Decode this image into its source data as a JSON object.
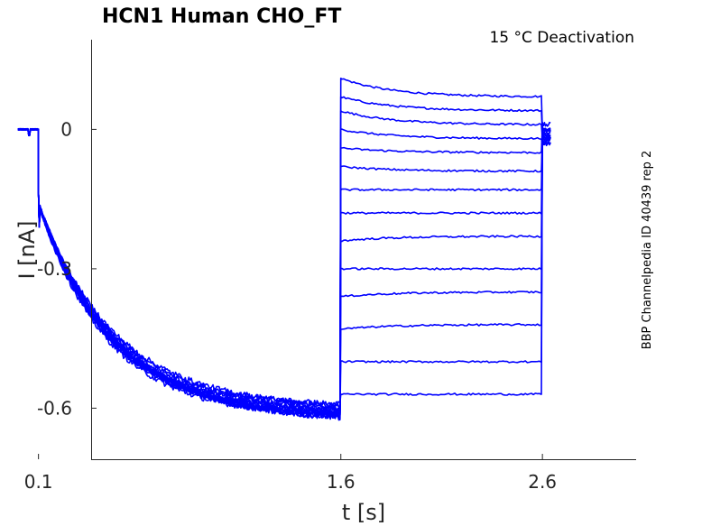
{
  "chart_data": {
    "type": "line",
    "title": "HCN1  Human  CHO_FT",
    "subtitle": "15 °C  Deactivation",
    "xlabel": "t [s]",
    "ylabel": "I [nA]",
    "side_label": "BBP Channelpedia ID 40439 rep 2",
    "xlim": [
      -0.0,
      2.64
    ],
    "ylim": [
      -0.72,
      0.19
    ],
    "xticks": [
      0.1,
      1.6,
      2.6
    ],
    "xtick_labels": [
      "0.1",
      "1.6",
      "2.6"
    ],
    "yticks": [
      0,
      -0.3,
      -0.6
    ],
    "ytick_labels": [
      "0",
      "-0.3",
      "-0.6"
    ],
    "grid": false,
    "color": "#0000ff",
    "protocol": {
      "holding_end": 0.1,
      "activation_end": 1.6,
      "test_end": 2.6,
      "record_end": 2.64
    },
    "activation_steady": [
      -0.6,
      -0.61,
      -0.62,
      -0.62,
      -0.63,
      -0.61,
      -0.62,
      -0.6,
      -0.61,
      -0.63,
      -0.62,
      -0.61,
      -0.62,
      -0.6
    ],
    "deactivation_steady": [
      0.07,
      0.04,
      0.01,
      -0.02,
      -0.05,
      -0.09,
      -0.13,
      -0.18,
      -0.23,
      -0.3,
      -0.35,
      -0.42,
      -0.5,
      -0.57
    ],
    "deactivation_start": [
      0.11,
      0.07,
      0.04,
      0.0,
      -0.04,
      -0.08,
      -0.13,
      -0.18,
      -0.24,
      -0.3,
      -0.36,
      -0.43,
      -0.5,
      -0.57
    ],
    "tail_values": [
      0.0,
      -0.01,
      -0.02,
      -0.03,
      0.01,
      -0.02,
      0.0,
      -0.01,
      -0.03,
      0.0,
      -0.02,
      -0.01,
      0.0,
      -0.02
    ]
  }
}
